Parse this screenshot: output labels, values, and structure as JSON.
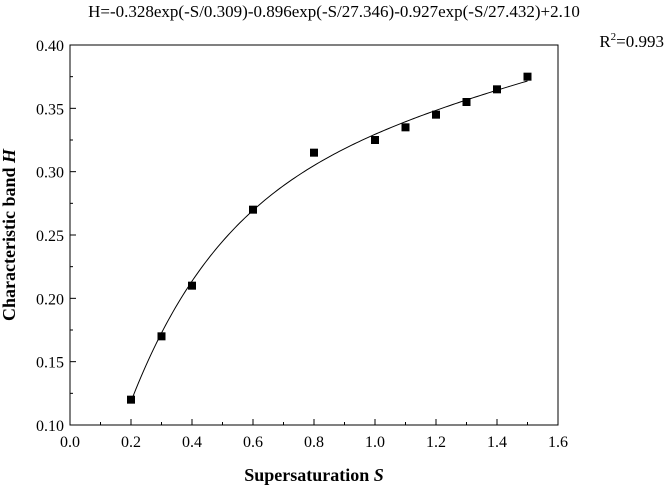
{
  "chart_data": {
    "type": "scatter",
    "equation": "H=-0.328exp(-S/0.309)-0.896exp(-S/27.346)-0.927exp(-S/27.432)+2.10",
    "r2_prefix": "R",
    "r2_sup": "2",
    "r2_suffix": "=0.993",
    "xlabel_text": "Supersaturation ",
    "xlabel_var": "S",
    "ylabel_text": "Characteristic band ",
    "ylabel_var": "H",
    "xlim": [
      0.0,
      1.6
    ],
    "ylim": [
      0.1,
      0.4
    ],
    "x_ticks": [
      "0.0",
      "0.2",
      "0.4",
      "0.6",
      "0.8",
      "1.0",
      "1.2",
      "1.4",
      "1.6"
    ],
    "y_ticks": [
      "0.10",
      "0.15",
      "0.20",
      "0.25",
      "0.30",
      "0.35",
      "0.40"
    ],
    "points": [
      {
        "x": 0.2,
        "y": 0.12
      },
      {
        "x": 0.3,
        "y": 0.17
      },
      {
        "x": 0.4,
        "y": 0.21
      },
      {
        "x": 0.6,
        "y": 0.27
      },
      {
        "x": 0.8,
        "y": 0.315
      },
      {
        "x": 1.0,
        "y": 0.325
      },
      {
        "x": 1.1,
        "y": 0.335
      },
      {
        "x": 1.2,
        "y": 0.345
      },
      {
        "x": 1.3,
        "y": 0.355
      },
      {
        "x": 1.4,
        "y": 0.365
      },
      {
        "x": 1.5,
        "y": 0.375
      }
    ],
    "fit": {
      "x_range": [
        0.2,
        1.5
      ],
      "terms": [
        {
          "a": -0.328,
          "t": 0.309
        },
        {
          "a": -0.896,
          "t": 27.346
        },
        {
          "a": -0.927,
          "t": 27.432
        }
      ],
      "c": 2.1
    },
    "marker": "filled-square",
    "grid": false,
    "legend": "none"
  }
}
